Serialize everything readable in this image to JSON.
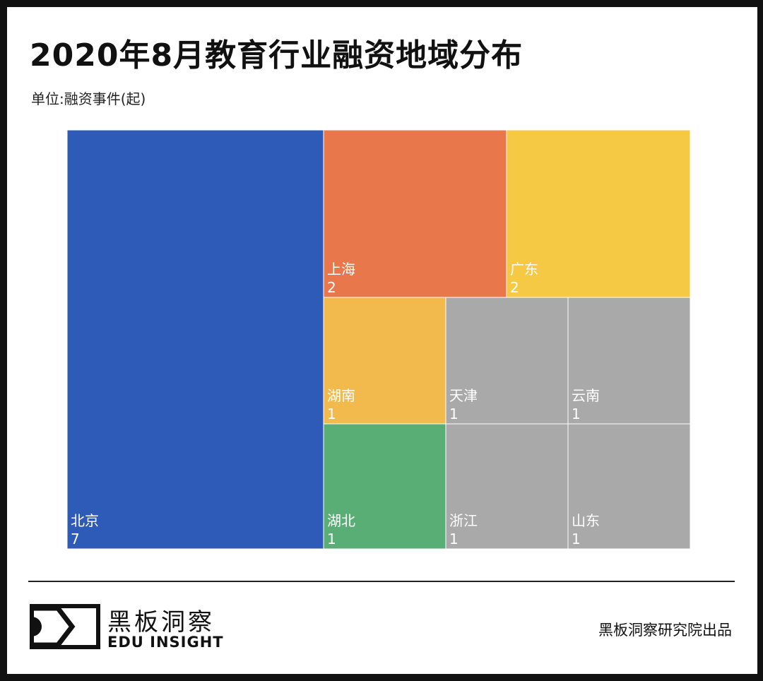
{
  "title": "2020年8月教育行业融资地域分布",
  "unit_label": "单位:融资事件(起)",
  "chart_data": {
    "type": "treemap",
    "title": "2020年8月教育行业融资地域分布",
    "subtitle": "单位:融资事件(起)",
    "items": [
      {
        "name": "北京",
        "value": 7,
        "color": "#2f5bb8"
      },
      {
        "name": "上海",
        "value": 2,
        "color": "#e8784c"
      },
      {
        "name": "广东",
        "value": 2,
        "color": "#f6c945"
      },
      {
        "name": "湖南",
        "value": 1,
        "color": "#f2b94c"
      },
      {
        "name": "天津",
        "value": 1,
        "color": "#a9a9a9"
      },
      {
        "name": "云南",
        "value": 1,
        "color": "#a9a9a9"
      },
      {
        "name": "湖北",
        "value": 1,
        "color": "#58ae74"
      },
      {
        "name": "浙江",
        "value": 1,
        "color": "#a9a9a9"
      },
      {
        "name": "山东",
        "value": 1,
        "color": "#a9a9a9"
      }
    ]
  },
  "footer": {
    "brand_cn": "黑板洞察",
    "brand_en": "EDU INSIGHT",
    "credit": "黑板洞察研究院出品"
  }
}
